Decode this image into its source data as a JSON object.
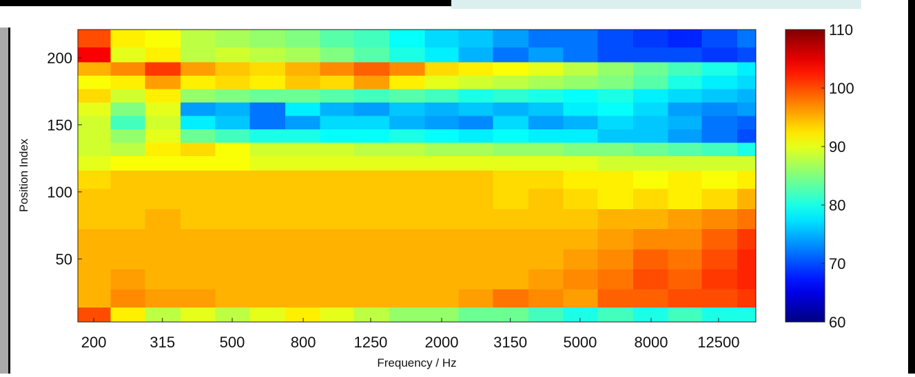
{
  "chart_data": {
    "type": "heatmap",
    "x_label": "Frequency / Hz",
    "y_label": "Position Index",
    "xscale": "log",
    "xlim": [
      180,
      16000
    ],
    "xticks": [
      200,
      315,
      500,
      800,
      1250,
      2000,
      3150,
      5000,
      8000,
      12500
    ],
    "ylim": [
      3,
      221
    ],
    "yticks": [
      50,
      100,
      150,
      200
    ],
    "clim": [
      60,
      110
    ],
    "cticks": [
      60,
      70,
      80,
      90,
      100,
      110
    ],
    "colormap": "jet",
    "x": [
      200,
      250,
      315,
      400,
      500,
      630,
      800,
      1000,
      1250,
      1600,
      2000,
      2500,
      3150,
      4000,
      5000,
      6300,
      8000,
      10000,
      12500,
      16000
    ],
    "y": [
      8,
      20,
      35,
      50,
      65,
      80,
      95,
      110,
      122,
      132,
      142,
      152,
      162,
      172,
      182,
      192,
      202,
      214
    ],
    "z": [
      [
        100,
        92,
        88,
        90,
        88,
        90,
        92,
        90,
        88,
        86,
        86,
        84,
        84,
        82,
        80,
        82,
        80,
        82,
        80,
        80
      ],
      [
        95,
        97,
        96,
        96,
        95,
        95,
        95,
        95,
        95,
        95,
        95,
        96,
        98,
        97,
        96,
        99,
        99,
        100,
        100,
        101
      ],
      [
        95,
        96,
        95,
        95,
        95,
        95,
        95,
        95,
        95,
        95,
        95,
        95,
        95,
        96,
        97,
        98,
        100,
        99,
        101,
        102
      ],
      [
        95,
        95,
        95,
        95,
        95,
        95,
        95,
        95,
        95,
        95,
        95,
        95,
        95,
        95,
        96,
        97,
        99,
        98,
        100,
        102
      ],
      [
        95,
        95,
        95,
        95,
        95,
        95,
        95,
        95,
        95,
        95,
        95,
        95,
        95,
        95,
        95,
        96,
        97,
        97,
        99,
        101
      ],
      [
        94,
        94,
        95,
        94,
        94,
        94,
        94,
        94,
        94,
        94,
        94,
        94,
        94,
        94,
        94,
        95,
        95,
        96,
        97,
        98
      ],
      [
        94,
        94,
        94,
        94,
        94,
        94,
        94,
        94,
        94,
        94,
        94,
        94,
        93,
        94,
        93,
        92,
        93,
        92,
        93,
        95
      ],
      [
        93,
        94,
        94,
        94,
        94,
        94,
        94,
        94,
        94,
        94,
        94,
        94,
        93,
        93,
        92,
        92,
        91,
        92,
        91,
        92
      ],
      [
        90,
        91,
        91,
        91,
        91,
        90,
        90,
        90,
        90,
        90,
        90,
        90,
        90,
        90,
        90,
        89,
        89,
        89,
        89,
        89
      ],
      [
        89,
        88,
        92,
        93,
        91,
        89,
        89,
        89,
        88,
        88,
        87,
        87,
        86,
        86,
        85,
        85,
        84,
        83,
        82,
        80
      ],
      [
        89,
        86,
        90,
        84,
        82,
        80,
        80,
        79,
        79,
        80,
        79,
        78,
        79,
        78,
        78,
        76,
        76,
        74,
        72,
        70
      ],
      [
        89,
        82,
        89,
        78,
        76,
        72,
        74,
        77,
        77,
        75,
        74,
        73,
        77,
        74,
        75,
        77,
        76,
        75,
        72,
        71
      ],
      [
        90,
        85,
        90,
        74,
        75,
        72,
        78,
        75,
        74,
        76,
        75,
        76,
        75,
        76,
        78,
        79,
        77,
        74,
        73,
        74
      ],
      [
        93,
        89,
        92,
        86,
        85,
        84,
        84,
        83,
        82,
        83,
        82,
        80,
        81,
        80,
        79,
        80,
        78,
        77,
        76,
        75
      ],
      [
        91,
        92,
        96,
        92,
        93,
        92,
        94,
        93,
        96,
        92,
        90,
        89,
        88,
        87,
        86,
        85,
        83,
        80,
        78,
        77
      ],
      [
        95,
        97,
        101,
        96,
        94,
        93,
        95,
        97,
        99,
        97,
        93,
        92,
        91,
        90,
        88,
        86,
        84,
        82,
        80,
        78
      ],
      [
        104,
        90,
        92,
        88,
        89,
        88,
        87,
        85,
        83,
        80,
        78,
        75,
        72,
        74,
        72,
        70,
        70,
        70,
        69,
        70
      ],
      [
        100,
        92,
        91,
        88,
        87,
        86,
        85,
        83,
        82,
        79,
        77,
        76,
        74,
        72,
        72,
        70,
        69,
        68,
        70,
        72
      ]
    ]
  }
}
